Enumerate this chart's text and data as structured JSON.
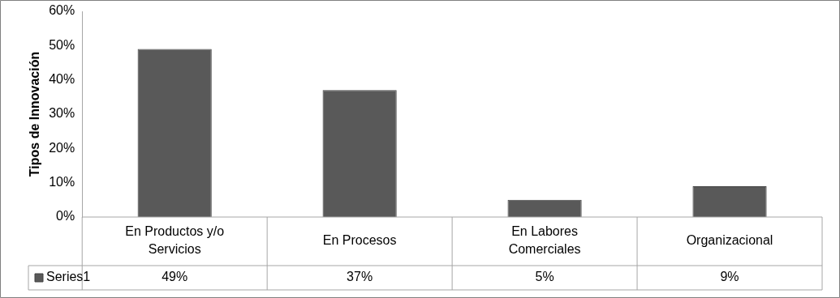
{
  "chart_data": {
    "type": "bar",
    "ylabel": "Tipos de Innovación",
    "categories": [
      "En Productos y/o Servicios",
      "En Procesos",
      "En Labores Comerciales",
      "Organizacional"
    ],
    "series": [
      {
        "name": "Series1",
        "color": "#595959",
        "values": [
          49,
          37,
          5,
          9
        ],
        "value_labels": [
          "49%",
          "37%",
          "5%",
          "9%"
        ]
      }
    ],
    "ylim": [
      0,
      60
    ],
    "yticks": [
      {
        "value": 0,
        "label": "0%"
      },
      {
        "value": 10,
        "label": "10%"
      },
      {
        "value": 20,
        "label": "20%"
      },
      {
        "value": 30,
        "label": "30%"
      },
      {
        "value": 40,
        "label": "40%"
      },
      {
        "value": 50,
        "label": "50%"
      },
      {
        "value": 60,
        "label": "60%"
      }
    ],
    "grid": false,
    "legend": "bottom left"
  }
}
